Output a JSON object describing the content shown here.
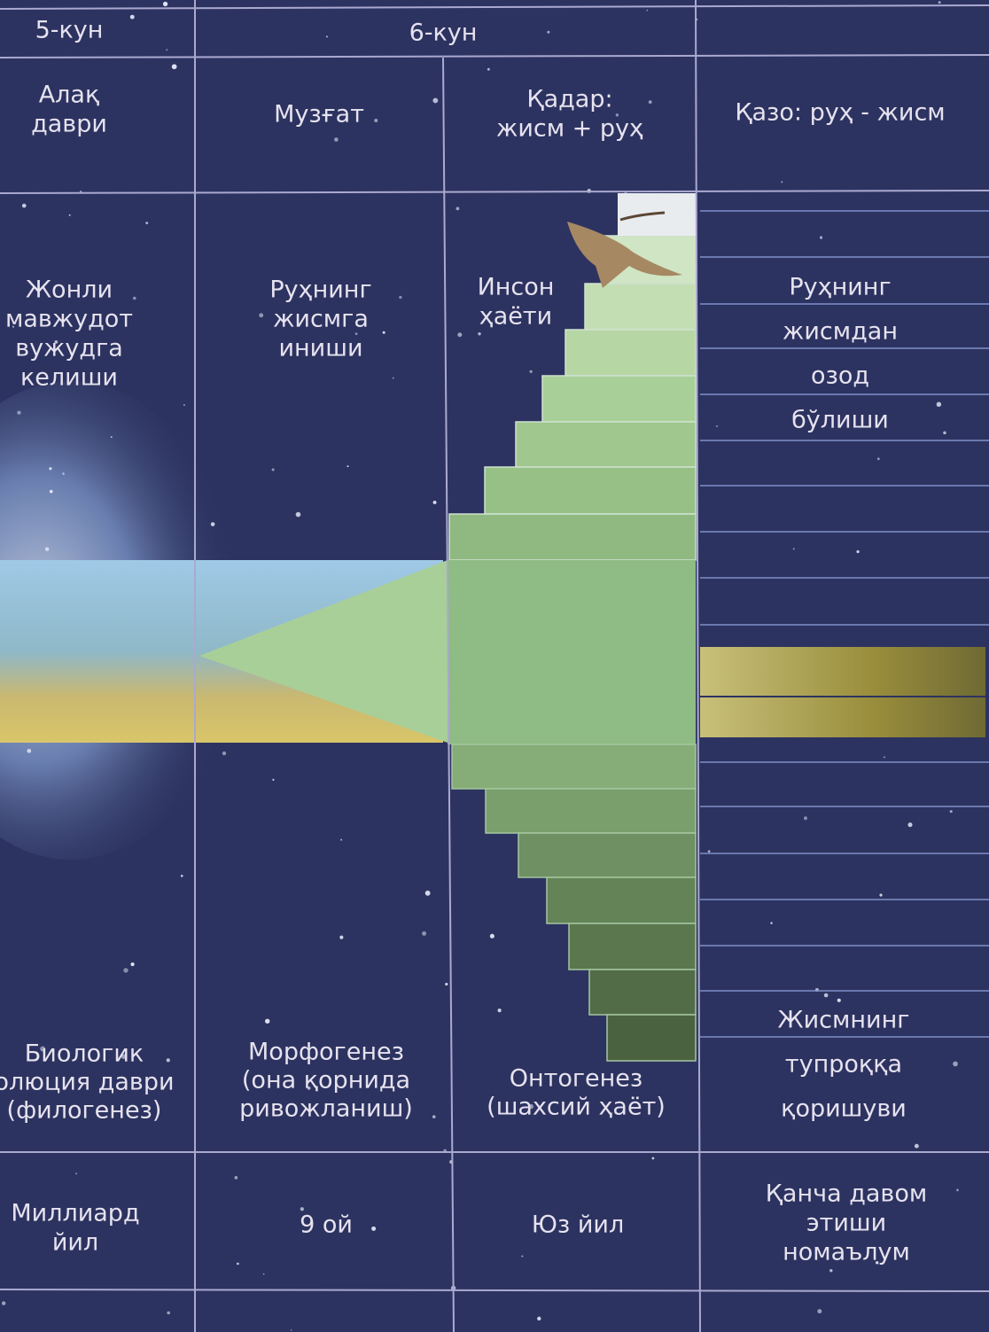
{
  "header": [
    [
      "5-кун"
    ],
    [
      "6-кун"
    ]
  ],
  "phases": [
    [
      "Алақ",
      "даври"
    ],
    [
      "Музғат"
    ],
    [
      "Қадар:",
      "жисм + руҳ"
    ],
    [
      "Қазо: руҳ - жисм"
    ]
  ],
  "events": [
    [
      "Жонли",
      "мавжудот",
      "вужудга",
      "келиши"
    ],
    [
      "Руҳнинг",
      "жисмга",
      "иниши"
    ],
    [
      "Инсон",
      "ҳаёти"
    ],
    [
      "Руҳнинг",
      "жисмдан",
      "озод",
      "бўлиши"
    ]
  ],
  "processes": [
    [
      "Биологик",
      "олюция даври",
      "(филогенез)"
    ],
    [
      "Морфогенез",
      "(она қорнида",
      "ривожланиш)"
    ],
    [
      "Онтогенез",
      "(шахсий ҳаёт)"
    ],
    [
      "Жисмнинг",
      "тупроққа",
      "қоришуви"
    ]
  ],
  "durations": [
    [
      "Миллиард",
      "йил"
    ],
    [
      "9 ой"
    ],
    [
      "Юз йил"
    ],
    [
      "Қанча давом",
      "этиши",
      "номаълум"
    ]
  ]
}
